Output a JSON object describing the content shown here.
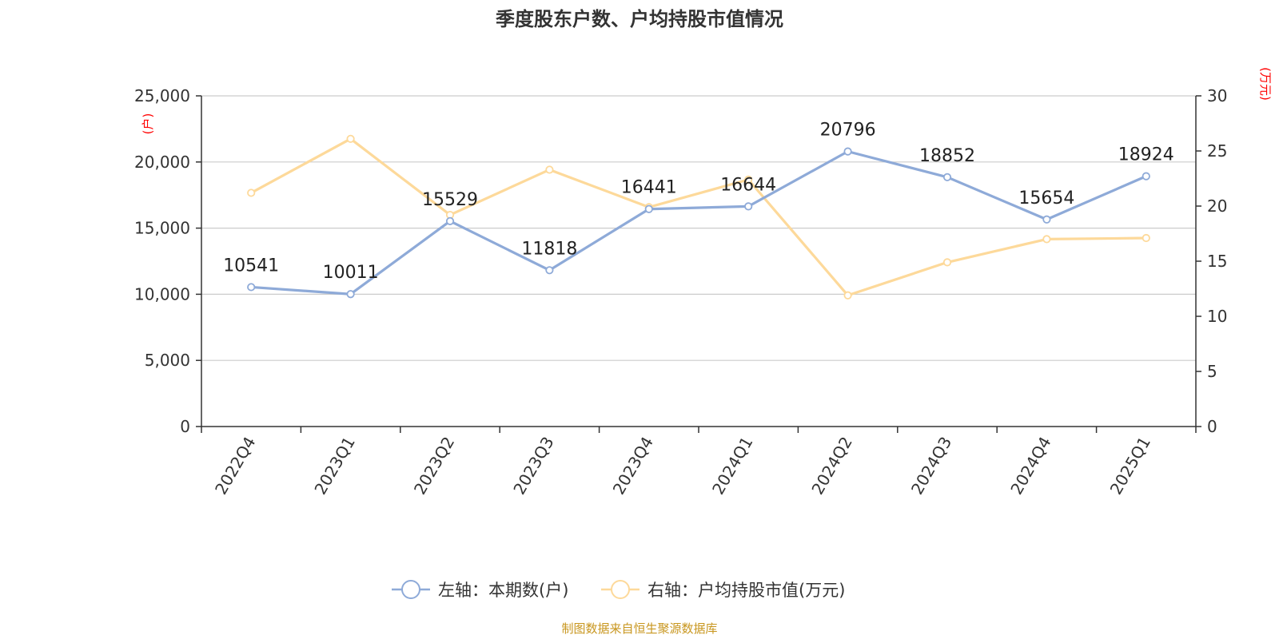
{
  "chart_data": {
    "type": "line",
    "title": "季度股东户数、户均持股市值情况",
    "categories": [
      "2022Q4",
      "2023Q1",
      "2023Q2",
      "2023Q3",
      "2023Q4",
      "2024Q1",
      "2024Q2",
      "2024Q3",
      "2024Q4",
      "2025Q1"
    ],
    "y_left": {
      "unit": "(户)",
      "ylim": [
        0,
        25000
      ],
      "ticks": [
        "0",
        "5,000",
        "10,000",
        "15,000",
        "20,000",
        "25,000"
      ]
    },
    "y_right": {
      "unit": "(万元)",
      "ylim": [
        0,
        30
      ],
      "ticks": [
        "0",
        "5",
        "10",
        "15",
        "20",
        "25",
        "30"
      ]
    },
    "series": [
      {
        "name": "左轴：本期数(户)",
        "axis": "left",
        "color": "#8eaad8",
        "values": [
          10541,
          10011,
          15529,
          11818,
          16441,
          16644,
          20796,
          18852,
          15654,
          18924
        ],
        "data_labels": [
          "10541",
          "10011",
          "15529",
          "11818",
          "16441",
          "16644",
          "20796",
          "18852",
          "15654",
          "18924"
        ]
      },
      {
        "name": "右轴：户均持股市值(万元)",
        "axis": "right",
        "color": "#fdd99a",
        "values": [
          21.2,
          26.1,
          19.2,
          23.3,
          19.9,
          22.4,
          11.9,
          14.9,
          17.0,
          17.1
        ]
      }
    ],
    "grid": true,
    "legend_position": "bottom-center",
    "source": "制图数据来自恒生聚源数据库"
  }
}
